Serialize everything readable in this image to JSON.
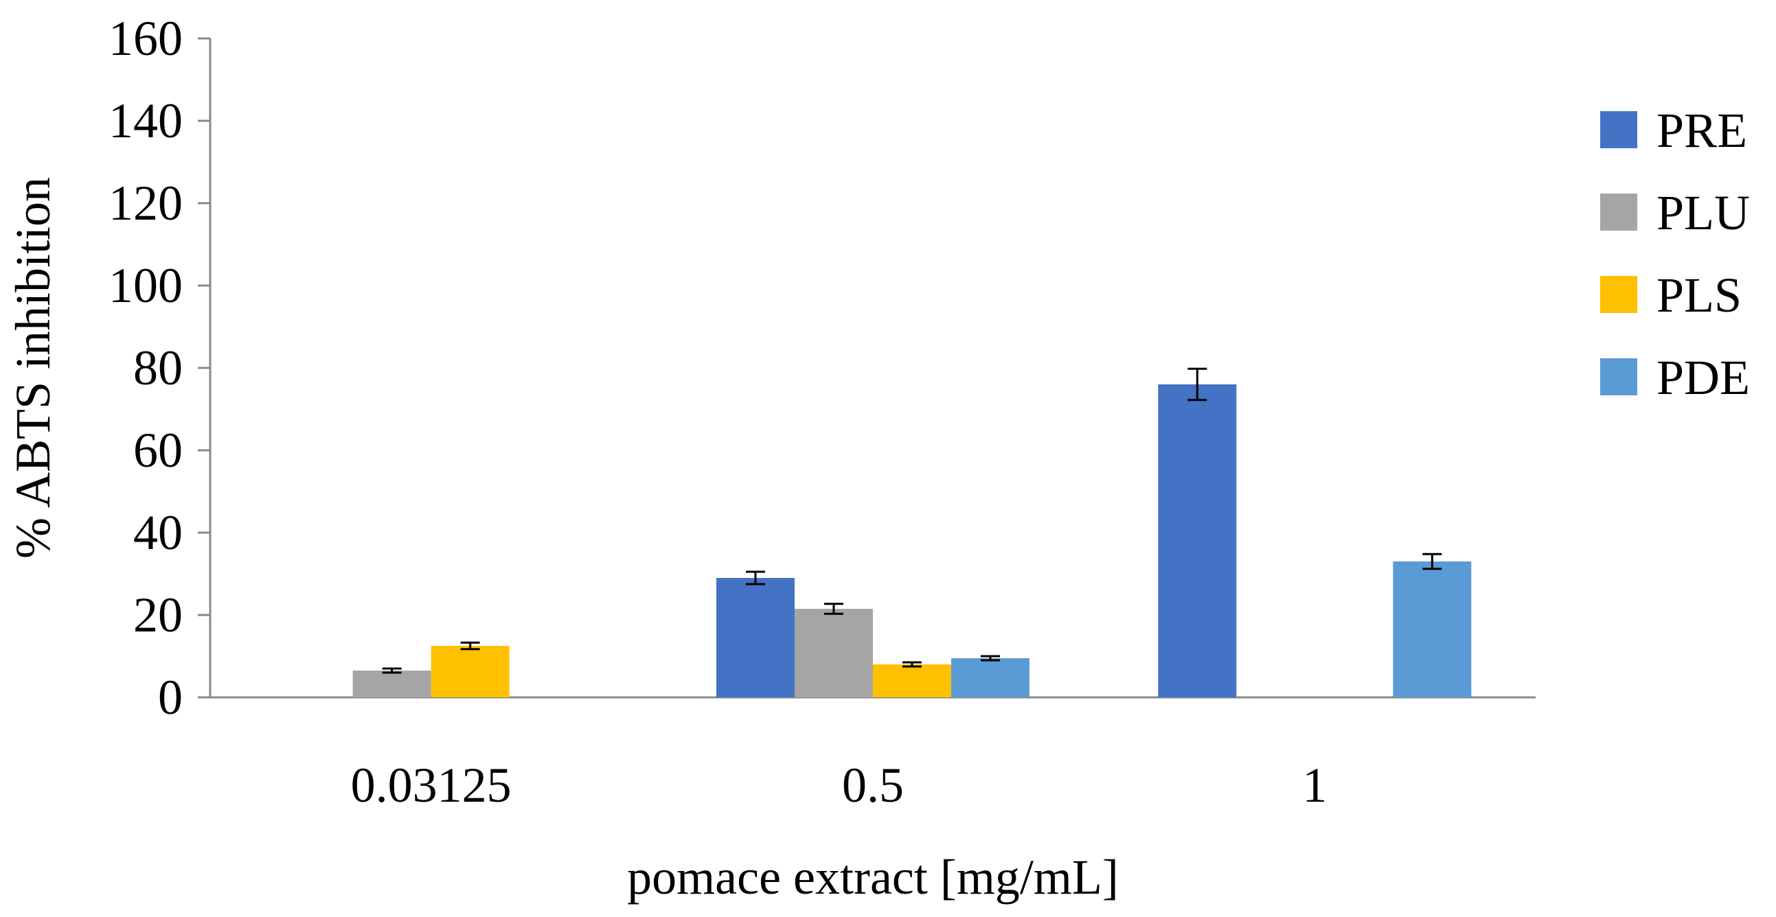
{
  "chart_data": {
    "type": "bar",
    "title": "",
    "xlabel": "pomace extract [mg/mL]",
    "ylabel": "% ABTS inhibition",
    "ylim": [
      0,
      160
    ],
    "yticks": [
      0,
      20,
      40,
      60,
      80,
      100,
      120,
      140,
      160
    ],
    "grid": false,
    "legend_position": "right",
    "categories": [
      "0.03125",
      "0.5",
      "1"
    ],
    "series": [
      {
        "name": "PRE",
        "color": "#4472C4",
        "values": [
          null,
          29,
          76
        ],
        "errors": [
          null,
          1.5,
          3.8
        ]
      },
      {
        "name": "PLU",
        "color": "#A5A5A5",
        "values": [
          6.5,
          21.5,
          null
        ],
        "errors": [
          0.5,
          1.2,
          null
        ]
      },
      {
        "name": "PLS",
        "color": "#FFC000",
        "values": [
          12.5,
          8,
          null
        ],
        "errors": [
          0.8,
          0.5,
          null
        ]
      },
      {
        "name": "PDE",
        "color": "#5B9BD5",
        "values": [
          null,
          9.5,
          33
        ],
        "errors": [
          null,
          0.5,
          1.8
        ]
      }
    ]
  }
}
